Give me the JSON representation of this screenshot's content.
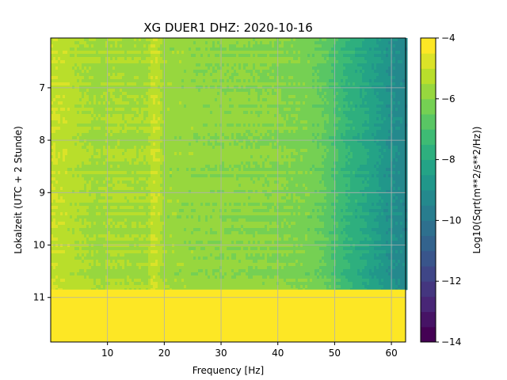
{
  "chart_data": {
    "type": "heatmap",
    "title": "XG DUER1  DHZ: 2020-10-16",
    "xlabel": "Frequency [Hz]",
    "ylabel": "Lokalzeit (UTC + 2 Stunde)",
    "colorbar_label": "Log10(Sqrt(m**2/s**2/Hz))",
    "colormap": "viridis",
    "xlim": [
      0,
      62.5
    ],
    "ylim": [
      11.85,
      6.05
    ],
    "y_inverted": true,
    "x_ticks": [
      10,
      20,
      30,
      40,
      50,
      60
    ],
    "x_tick_labels": [
      "10",
      "20",
      "30",
      "40",
      "50",
      "60"
    ],
    "y_ticks": [
      7,
      8,
      9,
      10,
      11
    ],
    "y_tick_labels": [
      "7",
      "8",
      "9",
      "10",
      "11"
    ],
    "clim": [
      -14,
      -4
    ],
    "colorbar_ticks": [
      -4,
      -6,
      -8,
      -10,
      -12,
      -14
    ],
    "colorbar_tick_labels": [
      "−4",
      "−6",
      "−8",
      "−10",
      "−12",
      "−14"
    ],
    "grid": true,
    "data_end_time": 10.85,
    "spectral_profile": {
      "frequency_hz": [
        0,
        5,
        9,
        10,
        17,
        18,
        19,
        20,
        30,
        40,
        45,
        48,
        50,
        52,
        55,
        58,
        60,
        62.5
      ],
      "log10_amplitude": [
        -5.0,
        -5.4,
        -5.7,
        -5.5,
        -5.6,
        -5.0,
        -5.2,
        -5.7,
        -5.9,
        -6.0,
        -6.2,
        -6.5,
        -7.0,
        -7.5,
        -8.0,
        -8.6,
        -9.0,
        -9.3
      ]
    },
    "fill_value_after_end": -4
  },
  "colors": {
    "background": "#ffffff",
    "grid": "#b0b0b0"
  }
}
